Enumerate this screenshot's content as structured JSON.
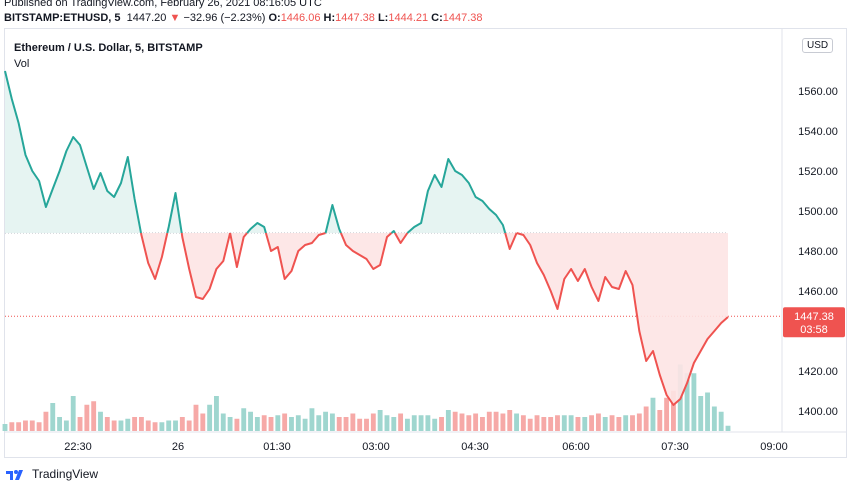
{
  "header": {
    "published": "Published on TradingView.com, February 26, 2021 08:16:05 UTC",
    "symbol": "BITSTAMP:ETHUSD, 5",
    "last": "1447.20",
    "arrow": "▼",
    "change": "−32.96 (−2.23%)",
    "o_label": "O:",
    "o_value": "1446.06",
    "h_label": "H:",
    "h_value": "1447.38",
    "l_label": "L:",
    "l_value": "1444.21",
    "c_label": "C:",
    "c_value": "1447.38"
  },
  "chart_title": "Ethereum / U.S. Dollar, 5, BITSTAMP",
  "volume_label": "Vol",
  "currency_button": "USD",
  "price_tag": {
    "price": "1447.38",
    "countdown": "03:58"
  },
  "footer": {
    "brand": "TradingView"
  },
  "colors": {
    "up": "#26a69a",
    "down": "#ef5350",
    "up_fill": "#e3f3f1",
    "down_fill": "#fde4e4"
  },
  "chart_data": {
    "type": "line",
    "x_ticks": [
      "22:30",
      "26",
      "01:30",
      "03:00",
      "04:30",
      "06:00",
      "07:30",
      "09:00"
    ],
    "y_ticks": [
      1400,
      1420,
      1440,
      1460,
      1480,
      1500,
      1520,
      1540,
      1560
    ],
    "ylim": [
      1389,
      1577
    ],
    "baseline": 1489,
    "last_price": 1447.38,
    "price": [
      1570,
      1556,
      1544,
      1528,
      1520,
      1515,
      1502,
      1511,
      1520,
      1530,
      1537,
      1533,
      1522,
      1511,
      1519,
      1510,
      1507,
      1514,
      1527,
      1506,
      1488,
      1474,
      1466,
      1477,
      1492,
      1509,
      1487,
      1471,
      1457,
      1456,
      1461,
      1471,
      1475,
      1489,
      1472,
      1487,
      1491,
      1494,
      1492,
      1480,
      1482,
      1466,
      1470,
      1480,
      1483,
      1484,
      1488,
      1489,
      1503,
      1491,
      1483,
      1480,
      1478,
      1476,
      1471,
      1473,
      1487,
      1490,
      1484,
      1489,
      1492,
      1494,
      1510,
      1518,
      1512,
      1526,
      1520,
      1518,
      1514,
      1507,
      1505,
      1501,
      1498,
      1493,
      1481,
      1489,
      1488,
      1483,
      1474,
      1468,
      1460,
      1451,
      1466,
      1471,
      1465,
      1471,
      1462,
      1455,
      1467,
      1462,
      1461,
      1470,
      1463,
      1440,
      1425,
      1430,
      1418,
      1408,
      1403,
      1406,
      1414,
      1424,
      1430,
      1436,
      1440,
      1444,
      1447
    ],
    "volume": [
      4,
      5,
      5,
      6,
      6,
      5,
      11,
      16,
      8,
      6,
      20,
      8,
      15,
      17,
      11,
      8,
      6,
      6,
      7,
      8,
      8,
      6,
      5,
      5,
      6,
      6,
      8,
      6,
      15,
      10,
      15,
      20,
      10,
      8,
      7,
      13,
      11,
      8,
      9,
      8,
      9,
      10,
      8,
      9,
      7,
      13,
      9,
      11,
      10,
      8,
      8,
      10,
      7,
      7,
      10,
      12,
      9,
      8,
      10,
      7,
      9,
      9,
      9,
      7,
      8,
      12,
      11,
      10,
      9,
      10,
      8,
      11,
      11,
      10,
      12,
      10,
      9,
      7,
      9,
      8,
      8,
      9,
      9,
      9,
      8,
      8,
      9,
      10,
      8,
      9,
      8,
      9,
      9,
      10,
      14,
      19,
      12,
      19,
      23,
      38,
      33,
      33,
      20,
      22,
      14,
      11,
      3
    ]
  }
}
